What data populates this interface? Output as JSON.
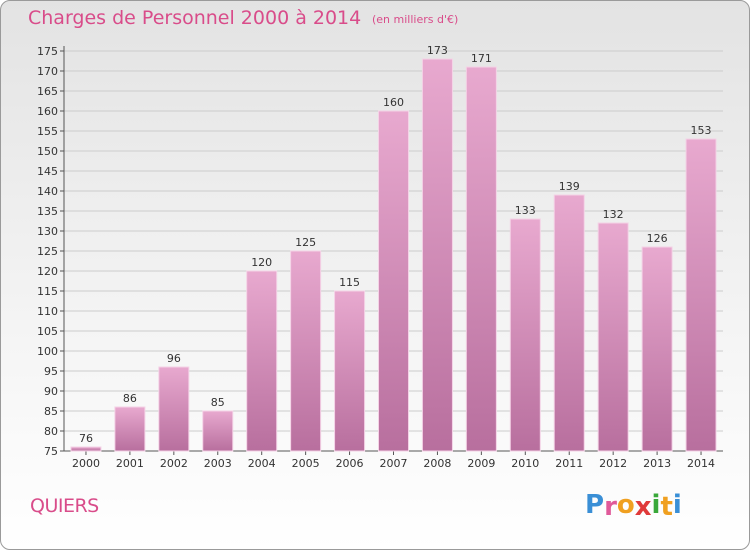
{
  "title": "Charges de Personnel 2000 à 2014",
  "subtitle": "(en milliers d'€)",
  "commune": "QUIERS",
  "logo": {
    "text": "Proxiti",
    "letters": [
      {
        "ch": "P",
        "color": "#3a8fd6"
      },
      {
        "ch": "r",
        "color": "#e05a9a"
      },
      {
        "ch": "o",
        "color": "#f0a020"
      },
      {
        "ch": "x",
        "color": "#e03a3a"
      },
      {
        "ch": "i",
        "color": "#3aa83a"
      },
      {
        "ch": "t",
        "color": "#f0a020"
      },
      {
        "ch": "i",
        "color": "#3a8fd6"
      }
    ]
  },
  "colors": {
    "bar_top": "#e8a9cf",
    "bar_bottom": "#b86f9e",
    "bar_edge": "#f4d2e6",
    "accent": "#d94c8a",
    "grid": "#cccccc"
  },
  "chart_data": {
    "type": "bar",
    "title": "Charges de Personnel 2000 à 2014",
    "subtitle": "(en milliers d'€)",
    "categories": [
      "2000",
      "2001",
      "2002",
      "2003",
      "2004",
      "2005",
      "2006",
      "2007",
      "2008",
      "2009",
      "2010",
      "2011",
      "2012",
      "2013",
      "2014"
    ],
    "values": [
      76,
      86,
      96,
      85,
      120,
      125,
      115,
      160,
      173,
      171,
      133,
      139,
      132,
      126,
      153
    ],
    "ylim": [
      75,
      175
    ],
    "yticks": [
      75,
      80,
      85,
      90,
      95,
      100,
      105,
      110,
      115,
      120,
      125,
      130,
      135,
      140,
      145,
      150,
      155,
      160,
      165,
      170,
      175
    ],
    "grid": true,
    "legend": "none"
  }
}
